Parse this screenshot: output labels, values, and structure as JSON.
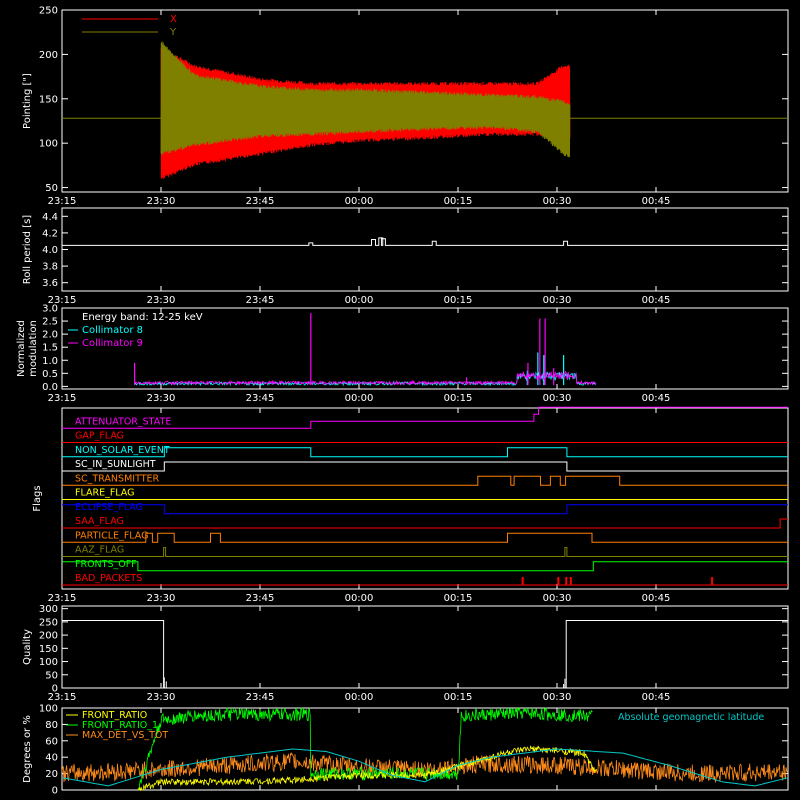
{
  "colors": {
    "background": "#000000",
    "axes": "#ffffff",
    "x_series": "#ff0000",
    "y_series": "#808000",
    "collimator8": "#00ffff",
    "collimator9": "#ff00ff",
    "front_ratio": "#ffff00",
    "front_ratio_1": "#00ff00",
    "max_det": "#ff8c1a",
    "geomag": "#00c8c8"
  },
  "time_axis": {
    "tick_labels": [
      "23:15",
      "23:30",
      "23:45",
      "00:00",
      "00:15",
      "00:30",
      "00:45"
    ],
    "range_minutes": [
      -45,
      65
    ],
    "tick_minutes": [
      -45,
      -30,
      -15,
      0,
      15,
      30,
      45
    ]
  },
  "chart_data": [
    {
      "type": "line",
      "ylabel": "Pointing [\"]",
      "ylim": [
        45,
        250
      ],
      "yticks": [
        "50",
        "100",
        "150",
        "200",
        "250"
      ],
      "ytick_values": [
        50,
        100,
        150,
        200,
        250
      ],
      "series": [
        {
          "name": "X",
          "color_key": "x_series"
        },
        {
          "name": "Y",
          "color_key": "y_series"
        }
      ],
      "baseline": 128,
      "active_span_minutes": [
        -30,
        32
      ],
      "x_envelope": {
        "x": [
          -30,
          -25,
          -15,
          -7,
          0,
          10,
          20,
          27,
          31,
          32
        ],
        "low": [
          62,
          78,
          90,
          100,
          105,
          108,
          112,
          112,
          108,
          108
        ],
        "high": [
          205,
          185,
          170,
          165,
          165,
          165,
          165,
          165,
          185,
          185
        ]
      },
      "y_envelope": {
        "x": [
          -30,
          -25,
          -15,
          -7,
          0,
          10,
          20,
          27,
          31,
          32
        ],
        "low": [
          90,
          100,
          110,
          112,
          115,
          118,
          120,
          115,
          90,
          85
        ],
        "high": [
          212,
          175,
          162,
          158,
          158,
          155,
          152,
          150,
          145,
          140
        ]
      }
    },
    {
      "type": "line",
      "ylabel": "Roll period [s]",
      "ylim": [
        3.5,
        4.5
      ],
      "yticks": [
        "3.6",
        "3.8",
        "4.0",
        "4.2",
        "4.4"
      ],
      "ytick_values": [
        3.6,
        3.8,
        4.0,
        4.2,
        4.4
      ],
      "level": 4.05,
      "spikes": [
        {
          "x": -7.3,
          "y": 4.08
        },
        {
          "x": 2.2,
          "y": 4.12
        },
        {
          "x": 3.3,
          "y": 4.14
        },
        {
          "x": 3.7,
          "y": 4.13
        },
        {
          "x": 11.4,
          "y": 4.1
        },
        {
          "x": 31.3,
          "y": 4.1
        }
      ]
    },
    {
      "type": "line",
      "ylabel": "Normalized modulation",
      "ylim": [
        -0.1,
        3.0
      ],
      "yticks": [
        "0.0",
        "0.5",
        "1.0",
        "1.5",
        "2.0",
        "2.5",
        "3.0"
      ],
      "ytick_values": [
        0,
        0.5,
        1.0,
        1.5,
        2.0,
        2.5,
        3.0
      ],
      "legend_header": "Energy band: 12-25 keV",
      "series": [
        {
          "name": "Collimator 8",
          "color_key": "collimator8"
        },
        {
          "name": "Collimator 9",
          "color_key": "collimator9"
        }
      ],
      "span_minutes": [
        -34,
        36
      ],
      "peaks_c8": [
        {
          "x": 27.1,
          "y": 1.3
        },
        {
          "x": 28,
          "y": 1.2
        },
        {
          "x": 31,
          "y": 1.2
        },
        {
          "x": 25.5,
          "y": 0.6
        }
      ],
      "peaks_c9": [
        {
          "x": -34,
          "y": 0.9
        },
        {
          "x": -7.3,
          "y": 2.8
        },
        {
          "x": 27.4,
          "y": 2.6
        },
        {
          "x": 28.2,
          "y": 2.6
        },
        {
          "x": 25.6,
          "y": 0.9
        },
        {
          "x": 29.5,
          "y": 0.7
        },
        {
          "x": 16.3,
          "y": 0.35
        }
      ]
    },
    {
      "type": "line",
      "ylabel": "Flags",
      "rows": [
        {
          "label": "ATTENUATOR_STATE",
          "color": "#ff00ff",
          "segments": [
            [
              -45,
              -7.3,
              0
            ],
            [
              -7.3,
              26.5,
              1
            ],
            [
              26.5,
              27.2,
              2
            ],
            [
              27.2,
              65,
              3
            ]
          ]
        },
        {
          "label": "GAP_FLAG",
          "color": "#ff0000",
          "segments": [
            [
              -45,
              65,
              0
            ]
          ]
        },
        {
          "label": "NON_SOLAR_EVENT",
          "color": "#00ffff",
          "segments": [
            [
              -45,
              -29.5,
              0
            ],
            [
              -29.5,
              -7.3,
              1
            ],
            [
              -7.3,
              22.5,
              0
            ],
            [
              22.5,
              24,
              1
            ],
            [
              24,
              31.5,
              1
            ],
            [
              31.5,
              65,
              0
            ]
          ]
        },
        {
          "label": "SC_IN_SUNLIGHT",
          "color": "#ffffff",
          "segments": [
            [
              -45,
              -29.5,
              0
            ],
            [
              -29.5,
              31.5,
              1
            ],
            [
              31.5,
              65,
              0
            ]
          ]
        },
        {
          "label": "SC_TRANSMITTER",
          "color": "#ff8000",
          "segments": [
            [
              -45,
              18,
              0
            ],
            [
              18,
              23,
              1
            ],
            [
              23,
              23.5,
              0
            ],
            [
              23.5,
              27.5,
              1
            ],
            [
              27.5,
              29,
              0
            ],
            [
              29,
              30.5,
              1
            ],
            [
              30.5,
              31.3,
              0
            ],
            [
              31.3,
              39.5,
              1
            ],
            [
              39.5,
              65,
              0
            ]
          ]
        },
        {
          "label": "FLARE_FLAG",
          "color": "#ffff00",
          "segments": [
            [
              -45,
              65,
              0
            ]
          ]
        },
        {
          "label": "ECLIPSE_FLAG",
          "color": "#0000ff",
          "segments": [
            [
              -45,
              -29.5,
              1
            ],
            [
              -29.5,
              31.5,
              0
            ],
            [
              31.5,
              65,
              1
            ]
          ]
        },
        {
          "label": "SAA_FLAG",
          "color": "#ff0000",
          "segments": [
            [
              -45,
              63.8,
              0
            ],
            [
              63.8,
              65,
              1
            ]
          ]
        },
        {
          "label": "PARTICLE_FLAG",
          "color": "#ff8000",
          "segments": [
            [
              -45,
              -32.3,
              0
            ],
            [
              -32.3,
              -31.3,
              1
            ],
            [
              -31.3,
              -30.5,
              0
            ],
            [
              -30.5,
              -29.5,
              1
            ],
            [
              -29.5,
              -28,
              1
            ],
            [
              -28,
              -22.5,
              0
            ],
            [
              -22.5,
              -21,
              1
            ],
            [
              -21,
              22.5,
              0
            ],
            [
              22.5,
              35.3,
              1
            ],
            [
              35.3,
              65,
              0
            ]
          ]
        },
        {
          "label": "AAZ_FLAG",
          "color": "#808000",
          "segments": [
            [
              -45,
              -29.6,
              0
            ],
            [
              -29.6,
              -29.3,
              1
            ],
            [
              -29.3,
              31.2,
              0
            ],
            [
              31.2,
              31.5,
              1
            ],
            [
              31.5,
              65,
              0
            ]
          ]
        },
        {
          "label": "FRONTS_OFF",
          "color": "#00ff00",
          "segments": [
            [
              -45,
              -33.5,
              1
            ],
            [
              -33.5,
              35.5,
              0
            ],
            [
              35.5,
              65,
              1
            ]
          ]
        },
        {
          "label": "BAD_PACKETS",
          "color": "#ff0000",
          "segments": [
            [
              -45,
              65,
              0
            ]
          ]
        }
      ],
      "bad_packet_spikes": [
        24.8,
        30.2,
        31.4,
        32.1,
        53.5
      ]
    },
    {
      "type": "line",
      "ylabel": "Quality",
      "ylim": [
        0,
        310
      ],
      "yticks": [
        "0",
        "50",
        "100",
        "150",
        "200",
        "250",
        "300"
      ],
      "ytick_values": [
        0,
        50,
        100,
        150,
        200,
        250,
        300
      ],
      "high_value": 255,
      "segments": [
        [
          -45,
          -29.6,
          255
        ],
        [
          -29.6,
          31.4,
          0
        ],
        [
          31.4,
          65,
          255
        ]
      ]
    },
    {
      "type": "line",
      "ylabel": "Degrees or %",
      "ylim": [
        0,
        100
      ],
      "yticks": [
        "0",
        "20",
        "40",
        "60",
        "80",
        "100"
      ],
      "ytick_values": [
        0,
        20,
        40,
        60,
        80,
        100
      ],
      "series": [
        {
          "name": "FRONT_RATIO",
          "color_key": "front_ratio"
        },
        {
          "name": "FRONT_RATIO_1",
          "color_key": "front_ratio_1"
        },
        {
          "name": "MAX_DET_VS_TOT",
          "color_key": "max_det"
        }
      ],
      "geomag_label": "Absolute geomagnetic latitude",
      "geomag": {
        "x": [
          -45,
          -38,
          -30,
          -20,
          -10,
          -5,
          0,
          5,
          10,
          15,
          20,
          30,
          40,
          47,
          55,
          60,
          65
        ],
        "y": [
          15,
          5,
          25,
          40,
          50,
          47,
          35,
          18,
          10,
          30,
          40,
          50,
          45,
          30,
          10,
          5,
          15
        ]
      },
      "front_ratio_1": {
        "x": [
          -33.5,
          -30,
          -25,
          -20,
          -10,
          -7.3,
          -7.3,
          15,
          15.5,
          20,
          25,
          30,
          35.5
        ],
        "y": [
          0,
          85,
          90,
          92,
          92,
          92,
          20,
          20,
          90,
          92,
          94,
          92,
          90
        ]
      },
      "front_ratio": {
        "x": [
          -33.5,
          -30,
          -20,
          -10,
          -7.3,
          0,
          10,
          18,
          22,
          26,
          30,
          34,
          36
        ],
        "y": [
          0,
          10,
          10,
          12,
          14,
          18,
          18,
          35,
          45,
          50,
          48,
          45,
          20
        ]
      },
      "max_det": {
        "x": [
          -45,
          -30,
          -20,
          -10,
          0,
          10,
          20,
          30,
          40,
          50,
          65
        ],
        "y": [
          20,
          25,
          30,
          35,
          28,
          25,
          32,
          30,
          25,
          20,
          22
        ]
      }
    }
  ]
}
